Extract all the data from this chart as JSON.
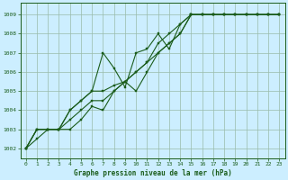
{
  "background_color": "#b3e8e8",
  "plot_bg_color": "#cceeff",
  "grid_color": "#99bbaa",
  "line_color": "#1a5c1a",
  "marker_color": "#1a5c1a",
  "title": "Graphe pression niveau de la mer (hPa)",
  "xlim": [
    -0.5,
    23.5
  ],
  "ylim": [
    1001.5,
    1009.6
  ],
  "yticks": [
    1002,
    1003,
    1004,
    1005,
    1006,
    1007,
    1008,
    1009
  ],
  "xticks": [
    0,
    1,
    2,
    3,
    4,
    5,
    6,
    7,
    8,
    9,
    10,
    11,
    12,
    13,
    14,
    15,
    16,
    17,
    18,
    19,
    20,
    21,
    22,
    23
  ],
  "series": [
    [
      1002.0,
      1002.5,
      1003.0,
      1003.0,
      1003.0,
      1003.5,
      1004.2,
      1004.0,
      1005.0,
      1005.5,
      1005.0,
      1006.0,
      1007.0,
      1007.5,
      1008.0,
      1009.0,
      1009.0,
      1009.0,
      1009.0,
      1009.0,
      1009.0,
      1009.0,
      1009.0,
      1009.0
    ],
    [
      1002.0,
      1003.0,
      1003.0,
      1003.0,
      1004.0,
      1004.5,
      1005.0,
      1007.0,
      1006.2,
      1005.2,
      1007.0,
      1007.2,
      1008.0,
      1007.2,
      1008.5,
      1009.0,
      1009.0,
      1009.0,
      1009.0,
      1009.0,
      1009.0,
      1009.0,
      1009.0,
      1009.0
    ],
    [
      1002.0,
      1003.0,
      1003.0,
      1003.0,
      1003.5,
      1004.0,
      1004.5,
      1004.5,
      1005.0,
      1005.5,
      1006.0,
      1006.5,
      1007.5,
      1008.0,
      1008.5,
      1009.0,
      1009.0,
      1009.0,
      1009.0,
      1009.0,
      1009.0,
      1009.0,
      1009.0,
      1009.0
    ],
    [
      1002.0,
      1003.0,
      1003.0,
      1003.0,
      1004.0,
      1004.5,
      1005.0,
      1005.0,
      1005.3,
      1005.5,
      1006.0,
      1006.5,
      1007.0,
      1007.5,
      1008.0,
      1009.0,
      1009.0,
      1009.0,
      1009.0,
      1009.0,
      1009.0,
      1009.0,
      1009.0,
      1009.0
    ]
  ]
}
